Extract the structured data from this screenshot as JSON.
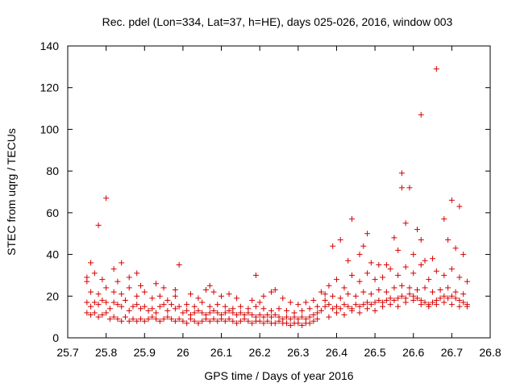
{
  "chart_data": {
    "type": "scatter",
    "title": "Rec. pdel (Lon=334, Lat=37, h=HE), days 025-026, 2016, window 003",
    "xlabel": "GPS time / Days of year 2016",
    "ylabel": "STEC from uqrg / TECUs",
    "xlim": [
      25.7,
      26.8
    ],
    "ylim": [
      0,
      140
    ],
    "xticks": [
      25.7,
      25.8,
      25.9,
      26.0,
      26.1,
      26.2,
      26.3,
      26.4,
      26.5,
      26.6,
      26.7,
      26.8
    ],
    "xtick_labels": [
      "25.7",
      "25.8",
      "25.9",
      "26",
      "26.1",
      "26.2",
      "26.3",
      "26.4",
      "26.5",
      "26.6",
      "26.7",
      "26.8"
    ],
    "yticks": [
      0,
      20,
      40,
      60,
      80,
      100,
      120,
      140
    ],
    "ytick_labels": [
      "0",
      "20",
      "40",
      "60",
      "80",
      "100",
      "120",
      "140"
    ],
    "marker": "+",
    "color": "#d40000",
    "series": [
      {
        "name": "STEC",
        "points": [
          [
            25.75,
            29
          ],
          [
            25.75,
            27
          ],
          [
            25.76,
            36
          ],
          [
            25.77,
            31
          ],
          [
            25.78,
            54
          ],
          [
            25.79,
            28
          ],
          [
            25.8,
            67
          ],
          [
            25.82,
            33
          ],
          [
            25.83,
            27
          ],
          [
            25.84,
            36
          ],
          [
            25.86,
            29
          ],
          [
            25.88,
            31
          ],
          [
            25.89,
            25
          ],
          [
            25.93,
            26
          ],
          [
            25.95,
            24
          ],
          [
            25.98,
            23
          ],
          [
            25.99,
            35
          ],
          [
            25.75,
            17
          ],
          [
            25.76,
            15
          ],
          [
            25.77,
            17
          ],
          [
            25.78,
            16
          ],
          [
            25.79,
            18
          ],
          [
            25.8,
            17
          ],
          [
            25.81,
            14
          ],
          [
            25.82,
            17
          ],
          [
            25.83,
            16
          ],
          [
            25.84,
            15
          ],
          [
            25.85,
            18
          ],
          [
            25.86,
            13
          ],
          [
            25.87,
            15
          ],
          [
            25.88,
            16
          ],
          [
            25.89,
            14
          ],
          [
            25.9,
            15
          ],
          [
            25.91,
            13
          ],
          [
            25.92,
            14
          ],
          [
            25.93,
            12
          ],
          [
            25.94,
            15
          ],
          [
            25.95,
            16
          ],
          [
            25.96,
            13
          ],
          [
            25.97,
            16
          ],
          [
            25.98,
            14
          ],
          [
            25.99,
            15
          ],
          [
            25.75,
            12
          ],
          [
            25.76,
            11
          ],
          [
            25.77,
            12
          ],
          [
            25.78,
            10
          ],
          [
            25.79,
            11
          ],
          [
            25.8,
            12
          ],
          [
            25.81,
            9
          ],
          [
            25.82,
            10
          ],
          [
            25.83,
            9
          ],
          [
            25.84,
            8
          ],
          [
            25.85,
            10
          ],
          [
            25.86,
            8
          ],
          [
            25.87,
            9
          ],
          [
            25.88,
            8
          ],
          [
            25.89,
            9
          ],
          [
            25.9,
            8
          ],
          [
            25.91,
            9
          ],
          [
            25.92,
            10
          ],
          [
            25.93,
            9
          ],
          [
            25.94,
            8
          ],
          [
            25.95,
            9
          ],
          [
            25.96,
            10
          ],
          [
            25.97,
            9
          ],
          [
            25.98,
            8
          ],
          [
            25.99,
            9
          ],
          [
            25.76,
            22
          ],
          [
            25.78,
            21
          ],
          [
            25.8,
            24
          ],
          [
            25.82,
            22
          ],
          [
            25.84,
            21
          ],
          [
            25.86,
            24
          ],
          [
            25.88,
            20
          ],
          [
            25.9,
            22
          ],
          [
            25.92,
            19
          ],
          [
            25.94,
            20
          ],
          [
            25.96,
            18
          ],
          [
            25.98,
            20
          ],
          [
            26.0,
            8
          ],
          [
            26.01,
            7
          ],
          [
            26.02,
            9
          ],
          [
            26.03,
            8
          ],
          [
            26.04,
            7
          ],
          [
            26.05,
            8
          ],
          [
            26.06,
            9
          ],
          [
            26.07,
            8
          ],
          [
            26.08,
            9
          ],
          [
            26.09,
            8
          ],
          [
            26.1,
            9
          ],
          [
            26.11,
            8
          ],
          [
            26.12,
            9
          ],
          [
            26.13,
            8
          ],
          [
            26.14,
            7
          ],
          [
            26.15,
            8
          ],
          [
            26.16,
            9
          ],
          [
            26.17,
            8
          ],
          [
            26.18,
            7
          ],
          [
            26.19,
            8
          ],
          [
            26.2,
            8
          ],
          [
            26.21,
            7
          ],
          [
            26.22,
            8
          ],
          [
            26.23,
            7
          ],
          [
            26.24,
            7
          ],
          [
            26.25,
            8
          ],
          [
            26.26,
            7
          ],
          [
            26.27,
            7
          ],
          [
            26.28,
            6
          ],
          [
            26.29,
            7
          ],
          [
            26.3,
            7
          ],
          [
            26.31,
            6
          ],
          [
            26.32,
            7
          ],
          [
            26.33,
            7
          ],
          [
            26.34,
            8
          ],
          [
            26.35,
            9
          ],
          [
            26.0,
            12
          ],
          [
            26.01,
            13
          ],
          [
            26.02,
            11
          ],
          [
            26.03,
            12
          ],
          [
            26.04,
            13
          ],
          [
            26.05,
            12
          ],
          [
            26.06,
            11
          ],
          [
            26.07,
            12
          ],
          [
            26.08,
            13
          ],
          [
            26.09,
            12
          ],
          [
            26.1,
            11
          ],
          [
            26.11,
            12
          ],
          [
            26.12,
            13
          ],
          [
            26.13,
            12
          ],
          [
            26.14,
            11
          ],
          [
            26.15,
            12
          ],
          [
            26.16,
            11
          ],
          [
            26.17,
            12
          ],
          [
            26.18,
            11
          ],
          [
            26.19,
            10
          ],
          [
            26.2,
            11
          ],
          [
            26.21,
            10
          ],
          [
            26.22,
            11
          ],
          [
            26.23,
            10
          ],
          [
            26.24,
            11
          ],
          [
            26.25,
            10
          ],
          [
            26.26,
            9
          ],
          [
            26.27,
            10
          ],
          [
            26.28,
            9
          ],
          [
            26.29,
            10
          ],
          [
            26.3,
            9
          ],
          [
            26.31,
            10
          ],
          [
            26.32,
            9
          ],
          [
            26.33,
            10
          ],
          [
            26.34,
            11
          ],
          [
            26.35,
            12
          ],
          [
            26.01,
            16
          ],
          [
            26.03,
            15
          ],
          [
            26.05,
            17
          ],
          [
            26.07,
            15
          ],
          [
            26.09,
            16
          ],
          [
            26.11,
            15
          ],
          [
            26.13,
            14
          ],
          [
            26.15,
            15
          ],
          [
            26.17,
            14
          ],
          [
            26.19,
            15
          ],
          [
            26.21,
            14
          ],
          [
            26.23,
            13
          ],
          [
            26.25,
            14
          ],
          [
            26.27,
            13
          ],
          [
            26.29,
            12
          ],
          [
            26.31,
            13
          ],
          [
            26.33,
            14
          ],
          [
            26.35,
            15
          ],
          [
            26.02,
            21
          ],
          [
            26.04,
            19
          ],
          [
            26.06,
            23
          ],
          [
            26.07,
            25
          ],
          [
            26.08,
            22
          ],
          [
            26.1,
            20
          ],
          [
            26.12,
            21
          ],
          [
            26.14,
            19
          ],
          [
            26.18,
            18
          ],
          [
            26.2,
            17
          ],
          [
            26.21,
            20
          ],
          [
            26.23,
            22
          ],
          [
            26.24,
            23
          ],
          [
            26.26,
            19
          ],
          [
            26.28,
            17
          ],
          [
            26.3,
            16
          ],
          [
            26.32,
            17
          ],
          [
            26.34,
            18
          ],
          [
            26.36,
            22
          ],
          [
            26.37,
            21
          ],
          [
            26.19,
            30
          ],
          [
            26.36,
            13
          ],
          [
            26.37,
            15
          ],
          [
            26.38,
            16
          ],
          [
            26.39,
            14
          ],
          [
            26.4,
            15
          ],
          [
            26.41,
            14
          ],
          [
            26.42,
            16
          ],
          [
            26.43,
            15
          ],
          [
            26.44,
            14
          ],
          [
            26.45,
            16
          ],
          [
            26.46,
            15
          ],
          [
            26.47,
            16
          ],
          [
            26.48,
            17
          ],
          [
            26.49,
            16
          ],
          [
            26.5,
            17
          ],
          [
            26.51,
            18
          ],
          [
            26.52,
            17
          ],
          [
            26.53,
            18
          ],
          [
            26.54,
            19
          ],
          [
            26.55,
            18
          ],
          [
            26.56,
            19
          ],
          [
            26.57,
            20
          ],
          [
            26.58,
            19
          ],
          [
            26.59,
            21
          ],
          [
            26.6,
            20
          ],
          [
            26.61,
            19
          ],
          [
            26.62,
            18
          ],
          [
            26.63,
            17
          ],
          [
            26.64,
            16
          ],
          [
            26.65,
            17
          ],
          [
            26.66,
            18
          ],
          [
            26.67,
            19
          ],
          [
            26.68,
            20
          ],
          [
            26.69,
            19
          ],
          [
            26.7,
            20
          ],
          [
            26.71,
            19
          ],
          [
            26.72,
            18
          ],
          [
            26.73,
            17
          ],
          [
            26.74,
            16
          ],
          [
            26.37,
            18
          ],
          [
            26.39,
            20
          ],
          [
            26.41,
            19
          ],
          [
            26.43,
            21
          ],
          [
            26.45,
            20
          ],
          [
            26.47,
            22
          ],
          [
            26.49,
            21
          ],
          [
            26.51,
            23
          ],
          [
            26.53,
            22
          ],
          [
            26.55,
            24
          ],
          [
            26.57,
            25
          ],
          [
            26.59,
            24
          ],
          [
            26.61,
            23
          ],
          [
            26.63,
            24
          ],
          [
            26.65,
            22
          ],
          [
            26.67,
            23
          ],
          [
            26.69,
            24
          ],
          [
            26.71,
            22
          ],
          [
            26.73,
            21
          ],
          [
            26.38,
            25
          ],
          [
            26.4,
            28
          ],
          [
            26.42,
            24
          ],
          [
            26.44,
            30
          ],
          [
            26.46,
            27
          ],
          [
            26.48,
            31
          ],
          [
            26.5,
            28
          ],
          [
            26.52,
            29
          ],
          [
            26.54,
            33
          ],
          [
            26.56,
            30
          ],
          [
            26.58,
            34
          ],
          [
            26.6,
            31
          ],
          [
            26.62,
            35
          ],
          [
            26.64,
            28
          ],
          [
            26.66,
            32
          ],
          [
            26.68,
            30
          ],
          [
            26.7,
            33
          ],
          [
            26.72,
            29
          ],
          [
            26.74,
            27
          ],
          [
            26.39,
            44
          ],
          [
            26.41,
            47
          ],
          [
            26.43,
            37
          ],
          [
            26.44,
            57
          ],
          [
            26.46,
            40
          ],
          [
            26.47,
            44
          ],
          [
            26.48,
            50
          ],
          [
            26.49,
            36
          ],
          [
            26.51,
            35
          ],
          [
            26.53,
            35
          ],
          [
            26.55,
            48
          ],
          [
            26.56,
            42
          ],
          [
            26.57,
            79
          ],
          [
            26.57,
            72
          ],
          [
            26.58,
            55
          ],
          [
            26.59,
            72
          ],
          [
            26.6,
            40
          ],
          [
            26.61,
            52
          ],
          [
            26.62,
            47
          ],
          [
            26.62,
            107
          ],
          [
            26.63,
            37
          ],
          [
            26.65,
            38
          ],
          [
            26.66,
            129
          ],
          [
            26.68,
            57
          ],
          [
            26.69,
            47
          ],
          [
            26.7,
            66
          ],
          [
            26.71,
            43
          ],
          [
            26.72,
            63
          ],
          [
            26.73,
            40
          ],
          [
            26.38,
            10
          ],
          [
            26.4,
            12
          ],
          [
            26.42,
            11
          ],
          [
            26.44,
            13
          ],
          [
            26.46,
            12
          ],
          [
            26.48,
            14
          ],
          [
            26.5,
            13
          ],
          [
            26.52,
            15
          ],
          [
            26.54,
            16
          ],
          [
            26.56,
            15
          ],
          [
            26.58,
            17
          ],
          [
            26.6,
            18
          ],
          [
            26.62,
            16
          ],
          [
            26.64,
            15
          ],
          [
            26.66,
            16
          ],
          [
            26.68,
            17
          ],
          [
            26.7,
            16
          ],
          [
            26.72,
            15
          ],
          [
            26.74,
            15
          ]
        ]
      }
    ]
  }
}
